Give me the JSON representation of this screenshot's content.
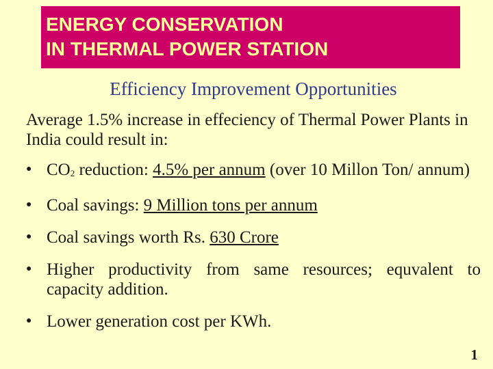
{
  "slide": {
    "title_line1": "ENERGY CONSERVATION",
    "title_line2": "IN THERMAL POWER STATION",
    "subtitle": "Efficiency Improvement Opportunities",
    "intro": "Average 1.5% increase in effeciency of Thermal Power Plants in India could result in:",
    "bullets": {
      "co2": {
        "co": "CO",
        "sub": "2",
        "pre": " reduction: ",
        "underlined": "4.5% per annum",
        "post": " (over 10 Millon Ton/ annum)"
      },
      "coal_tons": {
        "pre": "Coal savings: ",
        "underlined": "9 Million tons per annum"
      },
      "coal_worth": {
        "pre": "Coal savings worth Rs. ",
        "underlined": "630 Crore"
      },
      "productivity": {
        "text": "Higher productivity from same resources; equvalent to capacity addition."
      },
      "generation": {
        "text": "Lower generation cost per KWh."
      }
    },
    "bullet_symbol": "●",
    "page_number": "1"
  }
}
